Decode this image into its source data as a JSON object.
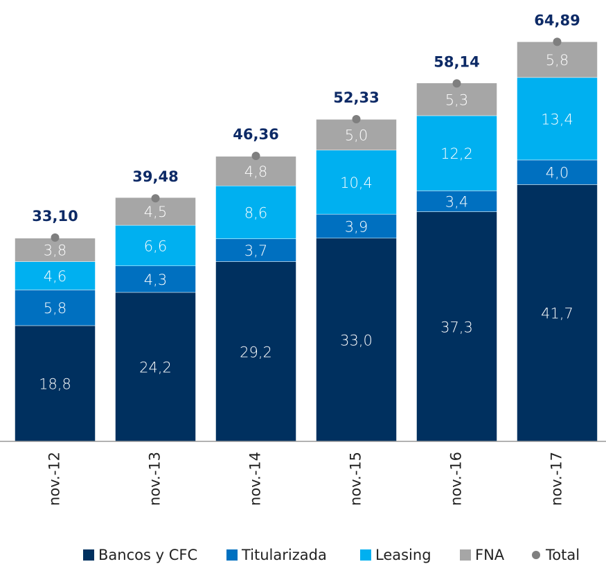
{
  "chart_data": {
    "type": "bar",
    "stacked": true,
    "categories": [
      "nov.-12",
      "nov.-13",
      "nov.-14",
      "nov.-15",
      "nov.-16",
      "nov.-17"
    ],
    "ylim": [
      0,
      70
    ],
    "series": [
      {
        "name": "Bancos y CFC",
        "color": "#00305f",
        "values": [
          18.8,
          24.2,
          29.2,
          33.0,
          37.3,
          41.7
        ],
        "value_labels": [
          "18,8",
          "24,2",
          "29,2",
          "33,0",
          "37,3",
          "41,7"
        ]
      },
      {
        "name": "Titularizada",
        "color": "#0070c0",
        "values": [
          5.8,
          4.3,
          3.7,
          3.9,
          3.4,
          4.0
        ],
        "value_labels": [
          "5,8",
          "4,3",
          "3,7",
          "3,9",
          "3,4",
          "4,0"
        ]
      },
      {
        "name": "Leasing",
        "color": "#00b0f0",
        "values": [
          4.6,
          6.6,
          8.6,
          10.4,
          12.2,
          13.4
        ],
        "value_labels": [
          "4,6",
          "6,6",
          "8,6",
          "10,4",
          "12,2",
          "13,4"
        ]
      },
      {
        "name": "FNA",
        "color": "#a6a6a6",
        "values": [
          3.8,
          4.5,
          4.8,
          5.0,
          5.3,
          5.8
        ],
        "value_labels": [
          "3,8",
          "4,5",
          "4,8",
          "5,0",
          "5,3",
          "5,8"
        ]
      },
      {
        "name": "Total",
        "type": "scatter",
        "color": "#7f7f7f",
        "values": [
          33.1,
          39.48,
          46.36,
          52.33,
          58.14,
          64.89
        ],
        "value_labels": [
          "33,10",
          "39,48",
          "46,36",
          "52,33",
          "58,14",
          "64,89"
        ]
      }
    ]
  }
}
